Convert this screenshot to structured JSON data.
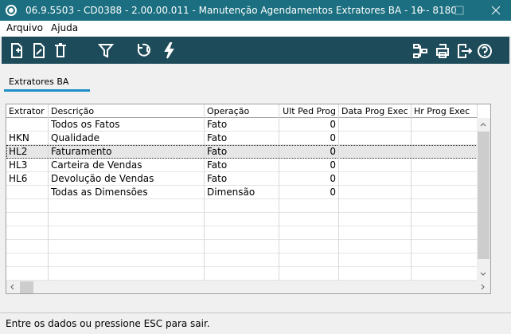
{
  "window": {
    "title": "06.9.5503 - CD0388 - 2.00.00.011 - Manutenção Agendamentos Extratores BA - 10 - 8180"
  },
  "menu": [
    "Arquivo",
    "Ajuda"
  ],
  "tab": "Extratores BA",
  "table": {
    "columns": [
      "Extrator",
      "Descrição",
      "Operação",
      "Ult Ped Prog",
      "Data Prog Exec",
      "Hr Prog Exec"
    ],
    "rows": [
      [
        null,
        "Todos os Fatos",
        "Fato",
        0,
        null,
        null
      ],
      [
        "HKN",
        "Qualidade",
        "Fato",
        0,
        null,
        null
      ],
      [
        "HL2",
        "Faturamento",
        "Fato",
        0,
        null,
        null
      ],
      [
        "HL3",
        "Carteira de Vendas",
        "Fato",
        0,
        null,
        null
      ],
      [
        "HL6",
        "Devolução de Vendas",
        "Fato",
        0,
        null,
        null
      ],
      [
        null,
        "Todas as Dimensões",
        "Dimensão",
        0,
        null,
        null
      ]
    ]
  },
  "status": "Entre os dados ou pressione ESC para sair."
}
